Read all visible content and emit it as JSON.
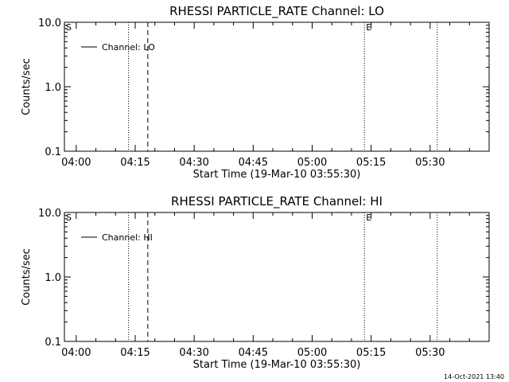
{
  "chart_data": [
    {
      "type": "line",
      "title": "RHESSI PARTICLE_RATE Channel: LO",
      "xlabel": "Start Time (19-Mar-10 03:55:30)",
      "ylabel": "Counts/sec",
      "ylog": true,
      "ylim": [
        0.1,
        10.0
      ],
      "yticks": [
        {
          "value": 10.0,
          "label": "10.0"
        },
        {
          "value": 1.0,
          "label": "1.0"
        },
        {
          "value": 0.1,
          "label": "0.1"
        }
      ],
      "xlim_min": [
        -3,
        105
      ],
      "xticks": [
        {
          "min": 0,
          "label": "04:00"
        },
        {
          "min": 15,
          "label": "04:15"
        },
        {
          "min": 30,
          "label": "04:30"
        },
        {
          "min": 45,
          "label": "04:45"
        },
        {
          "min": 60,
          "label": "05:00"
        },
        {
          "min": 75,
          "label": "05:15"
        },
        {
          "min": 90,
          "label": "05:30"
        }
      ],
      "series": [
        {
          "name": "Channel: LO",
          "values": []
        }
      ],
      "markers": [
        {
          "min": -3,
          "style": "dotted",
          "label": "S"
        },
        {
          "min": 13.3,
          "style": "dotted",
          "label": ""
        },
        {
          "min": 18.2,
          "style": "dashed",
          "label": ""
        },
        {
          "min": 73.3,
          "style": "dotted",
          "label": "E"
        },
        {
          "min": 91.8,
          "style": "dotted",
          "label": ""
        }
      ]
    },
    {
      "type": "line",
      "title": "RHESSI PARTICLE_RATE Channel: HI",
      "xlabel": "Start Time (19-Mar-10 03:55:30)",
      "ylabel": "Counts/sec",
      "ylog": true,
      "ylim": [
        0.1,
        10.0
      ],
      "yticks": [
        {
          "value": 10.0,
          "label": "10.0"
        },
        {
          "value": 1.0,
          "label": "1.0"
        },
        {
          "value": 0.1,
          "label": "0.1"
        }
      ],
      "xlim_min": [
        -3,
        105
      ],
      "xticks": [
        {
          "min": 0,
          "label": "04:00"
        },
        {
          "min": 15,
          "label": "04:15"
        },
        {
          "min": 30,
          "label": "04:30"
        },
        {
          "min": 45,
          "label": "04:45"
        },
        {
          "min": 60,
          "label": "05:00"
        },
        {
          "min": 75,
          "label": "05:15"
        },
        {
          "min": 90,
          "label": "05:30"
        }
      ],
      "series": [
        {
          "name": "Channel: HI",
          "values": []
        }
      ],
      "markers": [
        {
          "min": -3,
          "style": "dotted",
          "label": "S"
        },
        {
          "min": 13.3,
          "style": "dotted",
          "label": ""
        },
        {
          "min": 18.2,
          "style": "dashed",
          "label": ""
        },
        {
          "min": 73.3,
          "style": "dotted",
          "label": "E"
        },
        {
          "min": 91.8,
          "style": "dotted",
          "label": ""
        }
      ]
    }
  ],
  "footer": {
    "timestamp": "14-Oct-2021 13:40"
  }
}
